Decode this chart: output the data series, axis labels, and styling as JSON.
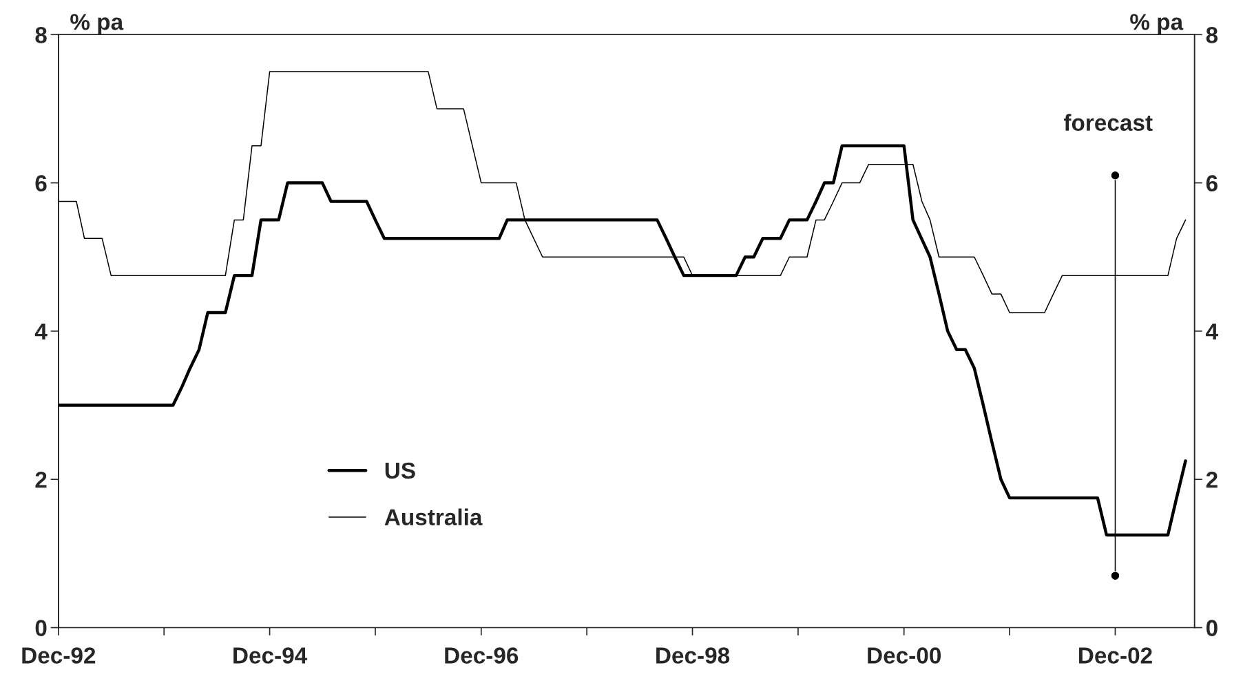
{
  "chart_data": {
    "type": "line",
    "ylabel": "% pa",
    "y2label": "% pa",
    "xlim": [
      "1992-12",
      "2003-09"
    ],
    "xticks": [
      {
        "value": "1992-12",
        "label": "Dec-92"
      },
      {
        "value": "1993-12",
        "label": null
      },
      {
        "value": "1994-12",
        "label": "Dec-94"
      },
      {
        "value": "1995-12",
        "label": null
      },
      {
        "value": "1996-12",
        "label": "Dec-96"
      },
      {
        "value": "1997-12",
        "label": null
      },
      {
        "value": "1998-12",
        "label": "Dec-98"
      },
      {
        "value": "1999-12",
        "label": null
      },
      {
        "value": "2000-12",
        "label": "Dec-00"
      },
      {
        "value": "2001-12",
        "label": null
      },
      {
        "value": "2002-12",
        "label": "Dec-02"
      }
    ],
    "ylim": [
      0,
      8
    ],
    "yticks": [
      0,
      2,
      4,
      6,
      8
    ],
    "y2lim": [
      0,
      8
    ],
    "y2ticks": [
      0,
      2,
      4,
      6,
      8
    ],
    "grid": false,
    "legend": "bottom left",
    "marker": "none",
    "line_style": "solid",
    "annotations": [
      "forecast"
    ],
    "series": [
      {
        "name": "US",
        "color": "#000000",
        "x": [
          "1992-12",
          "1994-01",
          "1994-02",
          "1994-03",
          "1994-04",
          "1994-05",
          "1994-07",
          "1994-08",
          "1994-10",
          "1994-11",
          "1995-01",
          "1995-02",
          "1995-06",
          "1995-07",
          "1995-11",
          "1995-12",
          "1996-01",
          "1997-02",
          "1997-03",
          "1998-08",
          "1998-09",
          "1998-10",
          "1998-11",
          "1999-05",
          "1999-06",
          "1999-07",
          "1999-08",
          "1999-10",
          "1999-11",
          "2000-01",
          "2000-02",
          "2000-03",
          "2000-04",
          "2000-05",
          "2000-12",
          "2001-01",
          "2001-03",
          "2001-04",
          "2001-05",
          "2001-06",
          "2001-07",
          "2001-08",
          "2001-09",
          "2001-10",
          "2001-11",
          "2001-12",
          "2002-10",
          "2002-11",
          "2003-06",
          "2003-07",
          "2003-08"
        ],
        "values": [
          3.0,
          3.0,
          3.25,
          3.5,
          3.75,
          4.25,
          4.25,
          4.75,
          4.75,
          5.5,
          5.5,
          6.0,
          6.0,
          5.75,
          5.75,
          5.5,
          5.25,
          5.25,
          5.5,
          5.5,
          5.25,
          5.0,
          4.75,
          4.75,
          5.0,
          5.0,
          5.25,
          5.25,
          5.5,
          5.5,
          5.75,
          6.0,
          6.0,
          6.5,
          6.5,
          5.5,
          5.0,
          4.5,
          4.0,
          3.75,
          3.75,
          3.5,
          3.0,
          2.5,
          2.0,
          1.75,
          1.75,
          1.25,
          1.25,
          1.75,
          2.25
        ]
      },
      {
        "name": "Australia",
        "color": "#000000",
        "x": [
          "1992-12",
          "1993-02",
          "1993-03",
          "1993-05",
          "1993-06",
          "1994-07",
          "1994-08",
          "1994-09",
          "1994-10",
          "1994-11",
          "1994-12",
          "1996-06",
          "1996-07",
          "1996-10",
          "1996-12",
          "1997-04",
          "1997-05",
          "1997-07",
          "1998-11",
          "1998-12",
          "1999-10",
          "1999-11",
          "2000-01",
          "2000-02",
          "2000-03",
          "2000-04",
          "2000-05",
          "2000-07",
          "2000-08",
          "2001-01",
          "2001-02",
          "2001-03",
          "2001-04",
          "2001-08",
          "2001-09",
          "2001-10",
          "2001-11",
          "2001-12",
          "2002-04",
          "2002-05",
          "2002-06",
          "2003-06",
          "2003-07",
          "2003-08"
        ],
        "values": [
          5.75,
          5.75,
          5.25,
          5.25,
          4.75,
          4.75,
          5.5,
          5.5,
          6.5,
          6.5,
          7.5,
          7.5,
          7.0,
          7.0,
          6.0,
          6.0,
          5.5,
          5.0,
          5.0,
          4.75,
          4.75,
          5.0,
          5.0,
          5.5,
          5.5,
          5.75,
          6.0,
          6.0,
          6.25,
          6.25,
          5.75,
          5.5,
          5.0,
          5.0,
          4.75,
          4.5,
          4.5,
          4.25,
          4.25,
          4.5,
          4.75,
          4.75,
          5.25,
          5.5
        ]
      },
      {
        "type": "line",
        "marker": "circle",
        "color": "#000000",
        "x": [
          "2002-12",
          "2002-12"
        ],
        "values": [
          6.1,
          0.7
        ]
      }
    ]
  }
}
